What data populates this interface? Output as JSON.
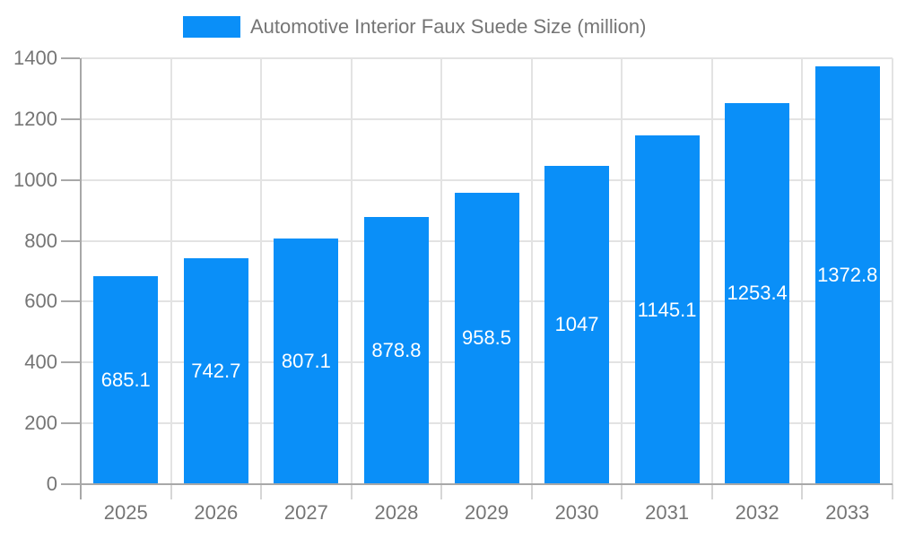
{
  "chart_data": {
    "type": "bar",
    "title": "Automotive Interior Faux Suede Size (million)",
    "legend": {
      "position": "top",
      "label": "Automotive Interior Faux Suede Size (million)"
    },
    "categories": [
      "2025",
      "2026",
      "2027",
      "2028",
      "2029",
      "2030",
      "2031",
      "2032",
      "2033"
    ],
    "series": [
      {
        "name": "Automotive Interior Faux Suede Size (million)",
        "values": [
          685.1,
          742.7,
          807.1,
          878.8,
          958.5,
          1047,
          1145.1,
          1253.4,
          1372.8
        ],
        "labels": [
          "685.1",
          "742.7",
          "807.1",
          "878.8",
          "958.5",
          "1047",
          "1145.1",
          "1253.4",
          "1372.8"
        ]
      }
    ],
    "xlabel": "",
    "ylabel": "",
    "ylim": [
      0,
      1400
    ],
    "yticks": [
      0,
      200,
      400,
      600,
      800,
      1000,
      1200,
      1400
    ],
    "grid": true,
    "colors": {
      "bar": "#0a8ff8",
      "bar_label": "#ffffff",
      "axis_text": "#757575",
      "axis_line": "#a8a8a8",
      "gridline": "#e3e3e3",
      "x_tick": "#d6d6d6",
      "background": "#ffffff"
    }
  }
}
